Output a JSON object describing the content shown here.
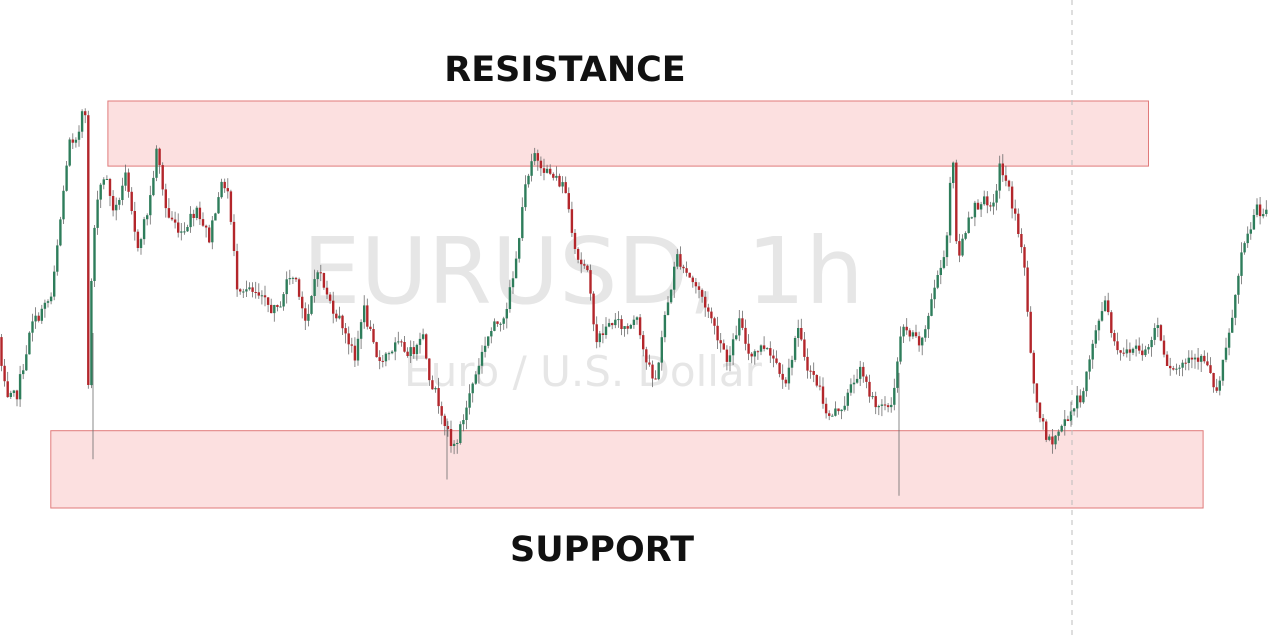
{
  "chart_data": {
    "type": "candlestick",
    "symbol_title": "EURUSD, 1h",
    "symbol_subtitle": "Euro / U.S. Dollar",
    "colors": {
      "up": "#2e7d5b",
      "down": "#b3262b",
      "wick": "#6b6b6b",
      "zone_fill": "#fbdada",
      "zone_stroke": "#e07a7a",
      "cursor_line": "#bdbdbd"
    },
    "zones": [
      {
        "label": "RESISTANCE",
        "low": 0.84,
        "high": 1.0,
        "start": 0.085,
        "end": 0.905,
        "label_position": "above"
      },
      {
        "label": "SUPPORT",
        "low": 0.0,
        "high": 0.19,
        "start": 0.04,
        "end": 0.948,
        "label_position": "below"
      }
    ],
    "price_path": [
      [
        0,
        0.42
      ],
      [
        10,
        0.26
      ],
      [
        20,
        0.28
      ],
      [
        35,
        0.45
      ],
      [
        55,
        0.52
      ],
      [
        65,
        0.74
      ],
      [
        72,
        0.9
      ],
      [
        78,
        0.88
      ],
      [
        84,
        0.95
      ],
      [
        88,
        1.06
      ],
      [
        91,
        0.26
      ],
      [
        95,
        0.6
      ],
      [
        101,
        0.78
      ],
      [
        108,
        0.82
      ],
      [
        118,
        0.72
      ],
      [
        128,
        0.82
      ],
      [
        140,
        0.64
      ],
      [
        152,
        0.74
      ],
      [
        160,
        0.88
      ],
      [
        170,
        0.72
      ],
      [
        185,
        0.68
      ],
      [
        200,
        0.74
      ],
      [
        212,
        0.66
      ],
      [
        222,
        0.78
      ],
      [
        230,
        0.8
      ],
      [
        240,
        0.55
      ],
      [
        260,
        0.52
      ],
      [
        280,
        0.48
      ],
      [
        292,
        0.57
      ],
      [
        300,
        0.56
      ],
      [
        310,
        0.44
      ],
      [
        320,
        0.6
      ],
      [
        330,
        0.52
      ],
      [
        348,
        0.44
      ],
      [
        358,
        0.36
      ],
      [
        366,
        0.5
      ],
      [
        380,
        0.36
      ],
      [
        400,
        0.4
      ],
      [
        415,
        0.38
      ],
      [
        425,
        0.44
      ],
      [
        433,
        0.32
      ],
      [
        445,
        0.24
      ],
      [
        455,
        0.14
      ],
      [
        462,
        0.18
      ],
      [
        475,
        0.3
      ],
      [
        490,
        0.42
      ],
      [
        508,
        0.48
      ],
      [
        518,
        0.58
      ],
      [
        526,
        0.76
      ],
      [
        538,
        0.87
      ],
      [
        552,
        0.82
      ],
      [
        568,
        0.79
      ],
      [
        580,
        0.62
      ],
      [
        590,
        0.58
      ],
      [
        600,
        0.41
      ],
      [
        615,
        0.46
      ],
      [
        630,
        0.44
      ],
      [
        640,
        0.48
      ],
      [
        648,
        0.37
      ],
      [
        658,
        0.3
      ],
      [
        666,
        0.44
      ],
      [
        680,
        0.62
      ],
      [
        690,
        0.58
      ],
      [
        705,
        0.52
      ],
      [
        720,
        0.43
      ],
      [
        732,
        0.36
      ],
      [
        742,
        0.46
      ],
      [
        752,
        0.38
      ],
      [
        770,
        0.4
      ],
      [
        790,
        0.31
      ],
      [
        800,
        0.44
      ],
      [
        812,
        0.34
      ],
      [
        822,
        0.3
      ],
      [
        832,
        0.22
      ],
      [
        848,
        0.26
      ],
      [
        862,
        0.34
      ],
      [
        875,
        0.27
      ],
      [
        888,
        0.24
      ],
      [
        895,
        0.26
      ],
      [
        905,
        0.44
      ],
      [
        915,
        0.42
      ],
      [
        925,
        0.4
      ],
      [
        935,
        0.52
      ],
      [
        945,
        0.6
      ],
      [
        952,
        0.7
      ],
      [
        955,
        0.95
      ],
      [
        960,
        0.6
      ],
      [
        972,
        0.72
      ],
      [
        985,
        0.76
      ],
      [
        995,
        0.72
      ],
      [
        1003,
        0.84
      ],
      [
        1012,
        0.78
      ],
      [
        1020,
        0.7
      ],
      [
        1028,
        0.58
      ],
      [
        1036,
        0.3
      ],
      [
        1043,
        0.23
      ],
      [
        1050,
        0.16
      ],
      [
        1060,
        0.18
      ],
      [
        1072,
        0.23
      ],
      [
        1085,
        0.28
      ],
      [
        1098,
        0.42
      ],
      [
        1108,
        0.52
      ],
      [
        1118,
        0.4
      ],
      [
        1130,
        0.38
      ],
      [
        1140,
        0.4
      ],
      [
        1150,
        0.38
      ],
      [
        1160,
        0.46
      ],
      [
        1170,
        0.36
      ],
      [
        1180,
        0.34
      ],
      [
        1195,
        0.38
      ],
      [
        1208,
        0.36
      ],
      [
        1220,
        0.28
      ],
      [
        1232,
        0.42
      ],
      [
        1245,
        0.62
      ],
      [
        1255,
        0.7
      ],
      [
        1260,
        0.74
      ],
      [
        1268,
        0.72
      ]
    ],
    "cursor_x": 1072
  }
}
